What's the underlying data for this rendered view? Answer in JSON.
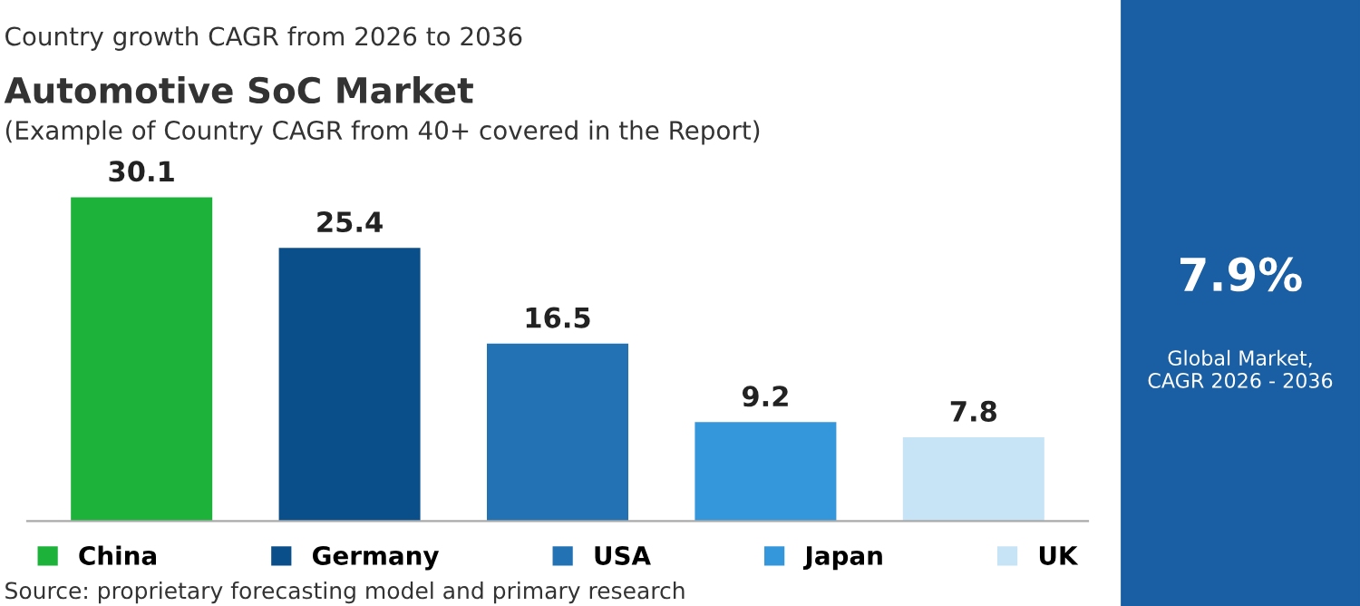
{
  "chart_data": {
    "type": "bar",
    "title": "Automotive SoC Market",
    "subtitle": "(Example of Country CAGR from 40+ covered in the Report)",
    "categories": [
      null,
      null,
      null,
      null,
      null
    ],
    "series": [
      {
        "name": "China",
        "color": "#1db33b",
        "values": [
          30.1,
          null,
          null,
          null,
          null
        ]
      },
      {
        "name": "Germany",
        "color": "#0b4f8a",
        "values": [
          null,
          25.4,
          null,
          null,
          null
        ]
      },
      {
        "name": "USA",
        "color": "#2272b4",
        "values": [
          null,
          null,
          16.5,
          null,
          null
        ]
      },
      {
        "name": "Japan",
        "color": "#3597db",
        "values": [
          null,
          null,
          null,
          9.2,
          null
        ]
      },
      {
        "name": "UK",
        "color": "#c6e4f5",
        "values": [
          null,
          null,
          null,
          null,
          7.8
        ]
      }
    ],
    "stacked": true,
    "data_labels": true,
    "legend": "bottom",
    "grid": false,
    "annotations": [
      "Country growth CAGR from 2026 to 2036",
      "Source: proprietary forecasting model and primary research",
      "7.9%",
      "Global Market,\nCAGR 2026 - 2036"
    ]
  }
}
